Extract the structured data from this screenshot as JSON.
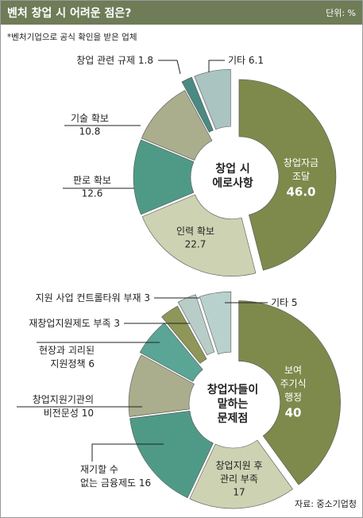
{
  "header": {
    "title": "벤처 창업 시 어려운 점은?",
    "unit": "단위: %",
    "note": "*벤처기업으로 공식 확인을 받은 업체"
  },
  "chart_data": [
    {
      "type": "donut",
      "center_label": [
        "창업 시",
        "에로사항"
      ],
      "categories": [
        [
          "창업자금",
          "조달"
        ],
        [
          "인력 확보"
        ],
        [
          "판로 확보"
        ],
        [
          "기술 확보"
        ],
        [
          "창업 관련 규제"
        ],
        [
          "기타"
        ]
      ],
      "values": [
        46.0,
        22.7,
        12.6,
        10.8,
        1.8,
        6.1
      ],
      "value_labels": [
        "46.0",
        "22.7",
        "12.6",
        "10.8",
        "1.8",
        "6.1"
      ],
      "colors": [
        "#7d8a4c",
        "#cdd2b2",
        "#4f9a87",
        "#aaae8d",
        "#4a8a82",
        "#a9c4c1"
      ]
    },
    {
      "type": "donut",
      "center_label": [
        "창업자들이",
        "말하는",
        "문제점"
      ],
      "categories": [
        [
          "보여",
          "주기식",
          "행정"
        ],
        [
          "창업지원 후",
          "관리 부족"
        ],
        [
          "재기할 수",
          "없는 금융제도"
        ],
        [
          "창업지원기관의",
          "비전문성"
        ],
        [
          "현장과 괴리된",
          "지원정책"
        ],
        [
          "재창업지원제도 부족"
        ],
        [
          "지원 사업 컨트롤타워 부재"
        ],
        [
          "기타"
        ]
      ],
      "values": [
        40,
        17,
        16,
        10,
        6,
        3,
        3,
        5
      ],
      "colors": [
        "#7d8a4c",
        "#cdd2b2",
        "#4f9a87",
        "#aaae8d",
        "#5aa596",
        "#8e9658",
        "#b9cdc8",
        "#b9d1cd"
      ]
    }
  ],
  "source": "자료: 중소기업청"
}
